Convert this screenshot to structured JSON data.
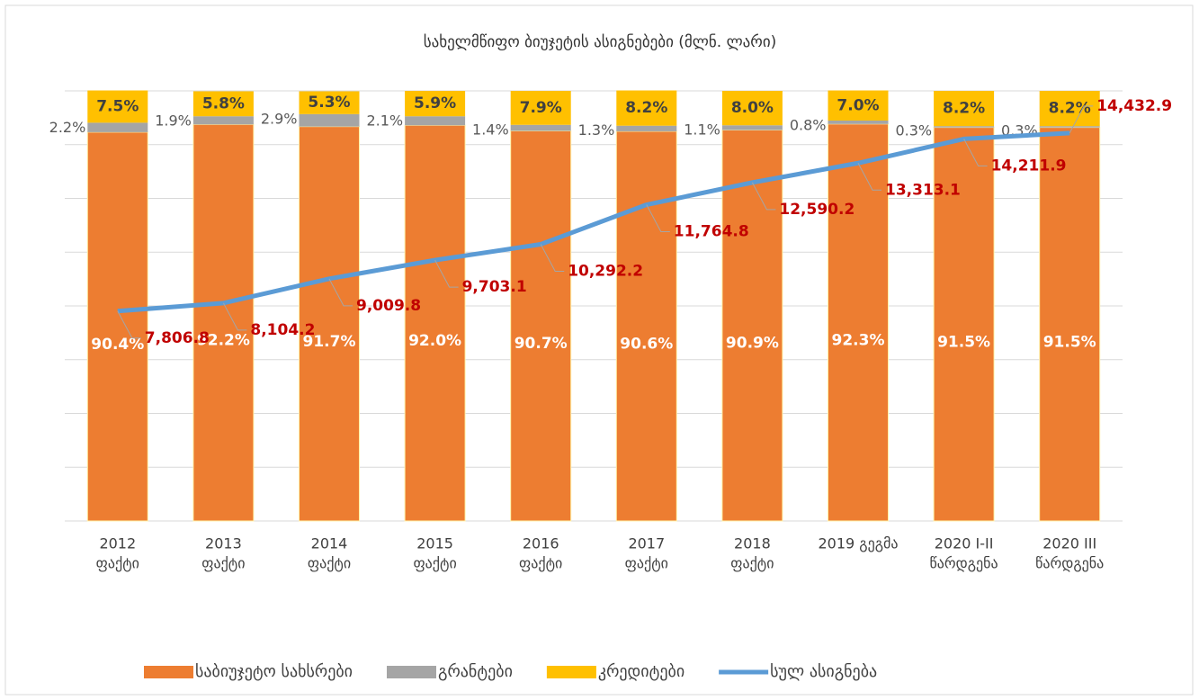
{
  "chart_data": {
    "type": "stacked_bar_line",
    "title": "სახელმწიფო ბიუჯეტის ასიგნებები (მლნ. ლარი)",
    "categories": [
      [
        "2012",
        "ფაქტი"
      ],
      [
        "2013",
        "ფაქტი"
      ],
      [
        "2014",
        "ფაქტი"
      ],
      [
        "2015",
        "ფაქტი"
      ],
      [
        "2016",
        "ფაქტი"
      ],
      [
        "2017",
        "ფაქტი"
      ],
      [
        "2018",
        "ფაქტი"
      ],
      [
        "2019 გეგმა"
      ],
      [
        "2020 I-II",
        "წარდგენა"
      ],
      [
        "2020 III",
        "წარდგენა"
      ]
    ],
    "ylim": [
      0,
      100
    ],
    "y2lim": [
      0,
      16000
    ],
    "y2ticks": [
      0,
      2000,
      4000,
      6000,
      8000,
      10000,
      12000,
      14000,
      16000
    ],
    "grid": true,
    "legend": "bottom",
    "series": [
      {
        "name": "საბიუჯეტო სახსრები",
        "color": "#ed7d31",
        "values": [
          90.4,
          92.2,
          91.7,
          92.0,
          90.7,
          90.6,
          90.9,
          92.3,
          91.5,
          91.5
        ],
        "value_labels": [
          "90.4%",
          "92.2%",
          "91.7%",
          "92.0%",
          "90.7%",
          "90.6%",
          "90.9%",
          "92.3%",
          "91.5%",
          "91.5%"
        ]
      },
      {
        "name": "გრანტები",
        "color": "#a5a5a5",
        "values": [
          2.2,
          1.9,
          2.9,
          2.1,
          1.4,
          1.3,
          1.1,
          0.8,
          0.3,
          0.3
        ],
        "value_labels": [
          "2.2%",
          "1.9%",
          "2.9%",
          "2.1%",
          "1.4%",
          "1.3%",
          "1.1%",
          "0.8%",
          "0.3%",
          "0.3%"
        ]
      },
      {
        "name": "კრედიტები",
        "color": "#ffc000",
        "values": [
          7.5,
          5.8,
          5.3,
          5.9,
          7.9,
          8.2,
          8.0,
          7.0,
          8.2,
          8.2
        ],
        "value_labels": [
          "7.5%",
          "5.8%",
          "5.3%",
          "5.9%",
          "7.9%",
          "8.2%",
          "8.0%",
          "7.0%",
          "8.2%",
          "8.2%"
        ]
      },
      {
        "name": "სულ ასიგნება",
        "color": "#5b9bd5",
        "axis": "y2",
        "values": [
          7806.8,
          8104.2,
          9009.8,
          9703.1,
          10292.2,
          11764.8,
          12590.2,
          13313.1,
          14211.9,
          14432.9
        ],
        "value_labels": [
          "7,806.8",
          "8,104.2",
          "9,009.8",
          "9,703.1",
          "10,292.2",
          "11,764.8",
          "12,590.2",
          "13,313.1",
          "14,211.9",
          "14,432.9"
        ]
      }
    ]
  }
}
